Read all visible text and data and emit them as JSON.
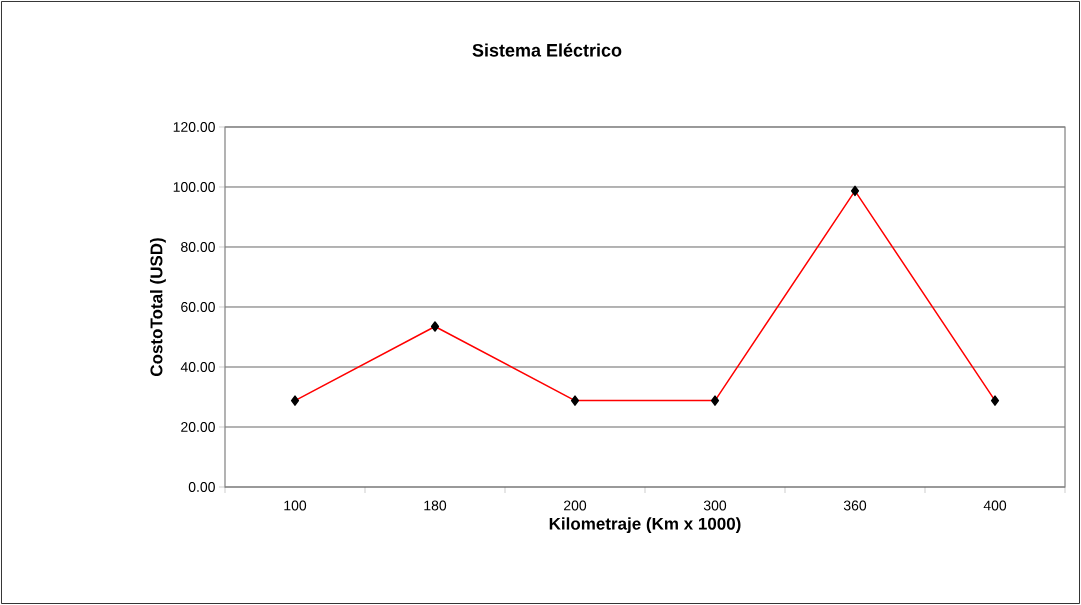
{
  "chart_data": {
    "type": "line",
    "title": "Sistema Eléctrico",
    "xlabel": "Kilometraje (Km x 1000)",
    "ylabel": "CostoTotal (USD)",
    "categories": [
      "100",
      "180",
      "200",
      "300",
      "360",
      "400"
    ],
    "series": [
      {
        "color": "#ff0000",
        "values": [
          28.8,
          53.5,
          28.8,
          28.8,
          98.7,
          28.8
        ]
      }
    ],
    "ylim": [
      0,
      120
    ],
    "yticks": [
      {
        "value": 0,
        "label": "0.00"
      },
      {
        "value": 20,
        "label": "20.00"
      },
      {
        "value": 40,
        "label": "40.00"
      },
      {
        "value": 60,
        "label": "60.00"
      },
      {
        "value": 80,
        "label": "80.00"
      },
      {
        "value": 100,
        "label": "100.00"
      },
      {
        "value": 120,
        "label": "120.00"
      }
    ],
    "grid": "y",
    "marker": "diamond",
    "line_style": "solid",
    "legend": false
  }
}
